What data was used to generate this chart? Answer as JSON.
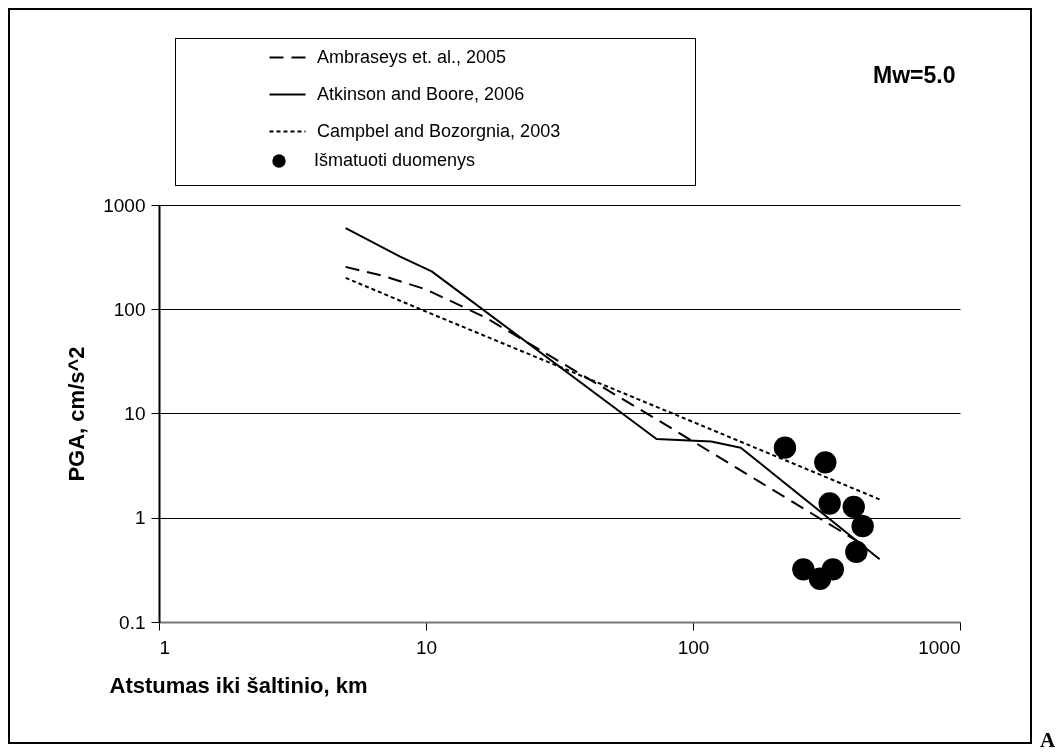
{
  "chart_data": {
    "type": "line",
    "xlabel": "Atstumas iki šaltinio, km",
    "ylabel": "PGA, cm/s^2",
    "log": "xy",
    "grid": "y",
    "legend": "top left",
    "xlim": [
      1,
      1000
    ],
    "xticks": [
      1,
      10,
      100,
      1000
    ],
    "ylim": [
      0.1,
      1000
    ],
    "yticks": [
      0.1,
      1,
      10,
      100,
      1000
    ],
    "annotations": [
      "Mw=5.0",
      "A"
    ],
    "series": [
      {
        "name": "Ambraseys et. al., 2005",
        "color": "#000000",
        "line_style": "dashed",
        "x": [
          5,
          7,
          10,
          16.6,
          72,
          336,
          424
        ],
        "values": [
          255,
          207,
          155,
          84,
          9,
          0.82,
          0.57
        ]
      },
      {
        "name": "Atkinson and Boore, 2006",
        "color": "#000000",
        "line_style": "solid",
        "x": [
          5,
          8,
          10.5,
          73,
          117,
          151,
          500
        ],
        "values": [
          600,
          320,
          231,
          5.7,
          5.4,
          4.7,
          0.4
        ]
      },
      {
        "name": "Campbel and Bozorgnia, 2003",
        "color": "#000000",
        "line_style": "dotted",
        "x": [
          5,
          10,
          100,
          500
        ],
        "values": [
          200,
          95,
          8.3,
          1.5
        ]
      },
      {
        "name": "Išmatuoti duomenys",
        "type": "scatter",
        "marker": "circle",
        "color": "#000000",
        "x": [
          221,
          313,
          325,
          400,
          432,
          409,
          259,
          299,
          334
        ],
        "values": [
          4.7,
          3.4,
          1.37,
          1.27,
          0.83,
          0.47,
          0.32,
          0.26,
          0.32
        ]
      }
    ]
  }
}
